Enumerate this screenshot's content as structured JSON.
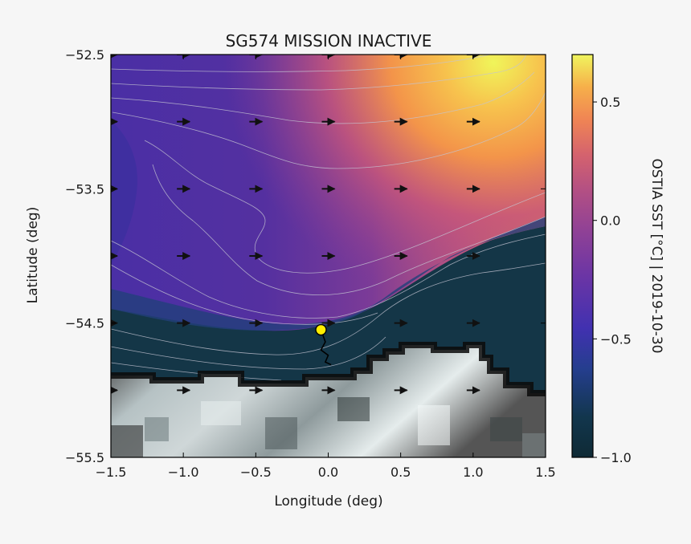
{
  "chart_data": {
    "type": "heatmap",
    "title": "SG574 MISSION INACTIVE",
    "xlabel": "Longitude (deg)",
    "ylabel": "Latitude (deg)",
    "xlim": [
      -1.5,
      1.5
    ],
    "ylim": [
      -55.5,
      -52.5
    ],
    "x_ticks": [
      -1.5,
      -1.0,
      -0.5,
      0.0,
      0.5,
      1.0,
      1.5
    ],
    "x_tick_labels": [
      "−1.5",
      "−1.0",
      "−0.5",
      "0.0",
      "0.5",
      "1.0",
      "1.5"
    ],
    "y_ticks": [
      -52.5,
      -53.5,
      -54.5,
      -55.5
    ],
    "y_tick_labels": [
      "−52.5",
      "−53.5",
      "−54.5",
      "−55.5"
    ],
    "colorbar": {
      "label": "OSTIA SST [°C] | 2019-10-30",
      "range": [
        -1.0,
        0.7
      ],
      "ticks": [
        0.5,
        0.0,
        -0.5,
        -1.0
      ],
      "tick_labels": [
        "0.5",
        "0.0",
        "−0.5",
        "−1.0"
      ],
      "colormap": "plasma-like (dark teal → purple → orange → yellow)"
    },
    "sea_ice": "grey masked region south of ~ -54.8",
    "current_vectors": {
      "direction": "eastward",
      "longitudes": [
        -1.5,
        -1.0,
        -0.5,
        0.0,
        0.5,
        1.0
      ],
      "latitudes": [
        -52.5,
        -53.0,
        -53.5,
        -54.0,
        -54.5,
        -55.0
      ]
    },
    "glider": {
      "label": "SG574",
      "position": {
        "lon": -0.05,
        "lat": -54.55
      },
      "track": [
        [
          -0.05,
          -54.55
        ],
        [
          -0.02,
          -54.64
        ],
        [
          -0.05,
          -54.7
        ],
        [
          0.0,
          -54.74
        ],
        [
          -0.02,
          -54.79
        ],
        [
          0.02,
          -54.81
        ]
      ]
    },
    "grid": false,
    "colors": {
      "marker": "#ffee00",
      "track": "#000000",
      "contour": "#c4c4d2",
      "arrows": "#111111",
      "background": "#f6f6f6"
    }
  }
}
